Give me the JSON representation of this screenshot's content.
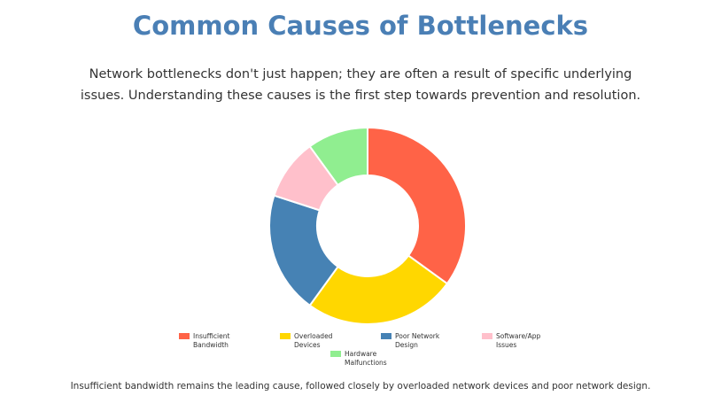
{
  "chart_data": {
    "type": "doughnut",
    "title": "Common Causes of Bottlenecks",
    "subtitle": "Network bottlenecks don't just happen; they are often a result of specific underlying issues. Understanding these causes is the first step towards prevention and resolution.",
    "categories": [
      "Insufficient Bandwidth",
      "Overloaded Devices",
      "Poor Network Design",
      "Software/App Issues",
      "Hardware Malfunctions"
    ],
    "values": [
      35,
      25,
      20,
      10,
      10
    ],
    "colors": [
      "#ff6347",
      "#ffd700",
      "#4682b4",
      "#ffc0cb",
      "#90ee90"
    ],
    "legend": "bottom",
    "caption": "Insufficient bandwidth remains the leading cause, followed closely by overloaded network devices and poor network design."
  }
}
